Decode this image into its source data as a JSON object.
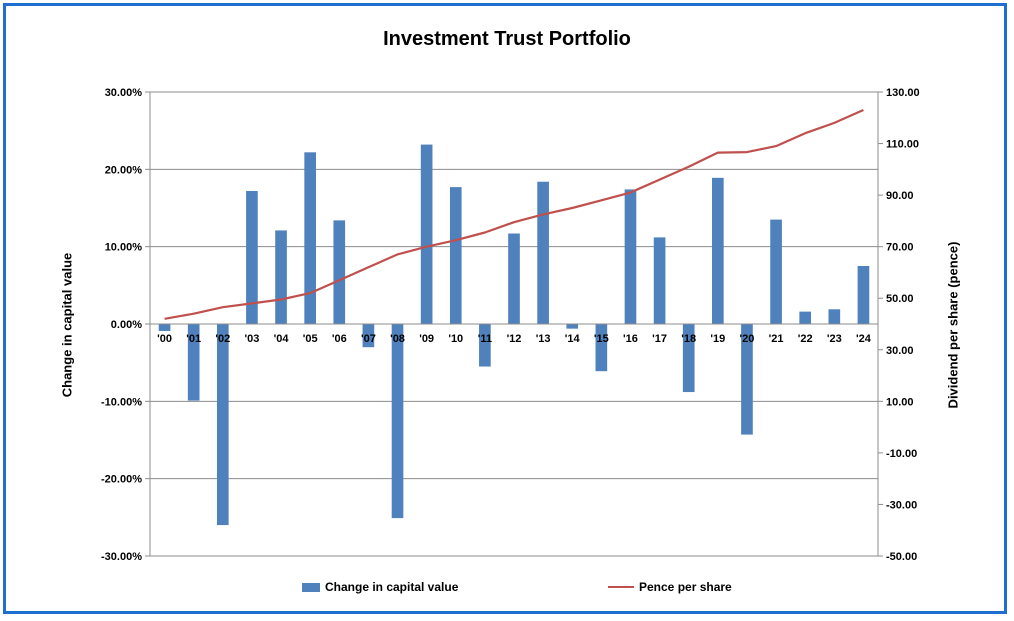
{
  "chart_data": {
    "type": "bar+line",
    "title": "Investment Trust Portfolio",
    "categories": [
      "'00",
      "'01",
      "'02",
      "'03",
      "'04",
      "'05",
      "'06",
      "'07",
      "'08",
      "'09",
      "'10",
      "'11",
      "'12",
      "'13",
      "'14",
      "'15",
      "'16",
      "'17",
      "'18",
      "'19",
      "'20",
      "'21",
      "'22",
      "'23",
      "'24"
    ],
    "series": [
      {
        "name": "Change in capital value",
        "type": "bar",
        "axis": "left",
        "color": "#4f81bd",
        "values": [
          -0.9,
          -9.9,
          -26.0,
          17.2,
          12.1,
          22.2,
          13.4,
          -3.0,
          -25.1,
          23.2,
          17.7,
          -5.5,
          11.7,
          18.4,
          -0.6,
          -6.1,
          17.4,
          11.2,
          -8.8,
          18.9,
          -14.3,
          13.5,
          1.6,
          1.9,
          7.5
        ]
      },
      {
        "name": "Pence per share",
        "type": "line",
        "axis": "right",
        "color": "#c0504d",
        "values": [
          42.0,
          44.0,
          46.5,
          48.0,
          49.5,
          52.0,
          57.0,
          62.0,
          67.0,
          70.0,
          72.5,
          75.5,
          79.5,
          82.5,
          85.0,
          88.0,
          91.0,
          96.0,
          101.0,
          106.5,
          106.7,
          109.0,
          114.0,
          118.0,
          123.0
        ]
      }
    ],
    "ylabel": "Change in capital value",
    "ylabel_right": "Dividend per share (pence)",
    "ylim": [
      -30,
      30
    ],
    "ylim_right": [
      -50,
      130
    ],
    "yticks": [
      "30.00%",
      "20.00%",
      "10.00%",
      "0.00%",
      "-10.00%",
      "-20.00%",
      "-30.00%"
    ],
    "yticks_right": [
      "130.00",
      "110.00",
      "90.00",
      "70.00",
      "50.00",
      "30.00",
      "10.00",
      "-10.00",
      "-30.00",
      "-50.00"
    ],
    "grid": true,
    "legend": "bottom"
  }
}
